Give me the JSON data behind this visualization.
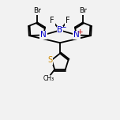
{
  "bg_color": "#f2f2f2",
  "bond_color": "#000000",
  "bond_width": 1.3,
  "atom_colors": {
    "N": "#0000cc",
    "B": "#0000cc",
    "Br": "#000000",
    "F": "#000000",
    "S": "#cc8800",
    "charge_plus": "#cc0000",
    "charge_minus": "#0000cc"
  }
}
